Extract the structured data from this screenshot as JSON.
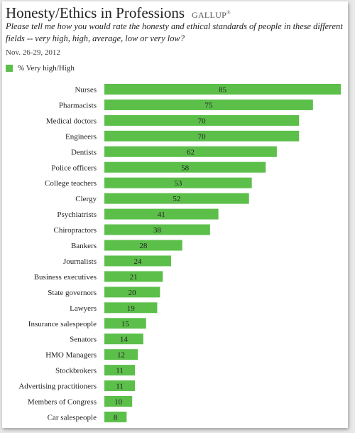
{
  "header": {
    "title": "Honesty/Ethics in Professions",
    "brand": "GALLUP",
    "brand_mark": "®",
    "question": "Please tell me how you would rate the honesty and ethical standards of people in these different fields -- very high, high, average, low or very low?",
    "date": "Nov. 26-29, 2012"
  },
  "colors": {
    "bar": "#5cbf4a",
    "legend_swatch": "#5cbf4a"
  },
  "chart_data": {
    "type": "bar",
    "orientation": "horizontal",
    "categories": [
      "Nurses",
      "Pharmacists",
      "Medical doctors",
      "Engineers",
      "Dentists",
      "Police officers",
      "College teachers",
      "Clergy",
      "Psychiatrists",
      "Chiropractors",
      "Bankers",
      "Journalists",
      "Business executives",
      "State governors",
      "Lawyers",
      "Insurance salespeople",
      "Senators",
      "HMO Managers",
      "Stockbrokers",
      "Advertising practitioners",
      "Members of Congress",
      "Car salespeople"
    ],
    "series": [
      {
        "name": "% Very high/High",
        "values": [
          85,
          75,
          70,
          70,
          62,
          58,
          53,
          52,
          41,
          38,
          28,
          24,
          21,
          20,
          19,
          15,
          14,
          12,
          11,
          11,
          10,
          8
        ]
      }
    ],
    "data_labels": true,
    "xlim": [
      0,
      85
    ],
    "grid": false,
    "legend_position": "top-left"
  }
}
